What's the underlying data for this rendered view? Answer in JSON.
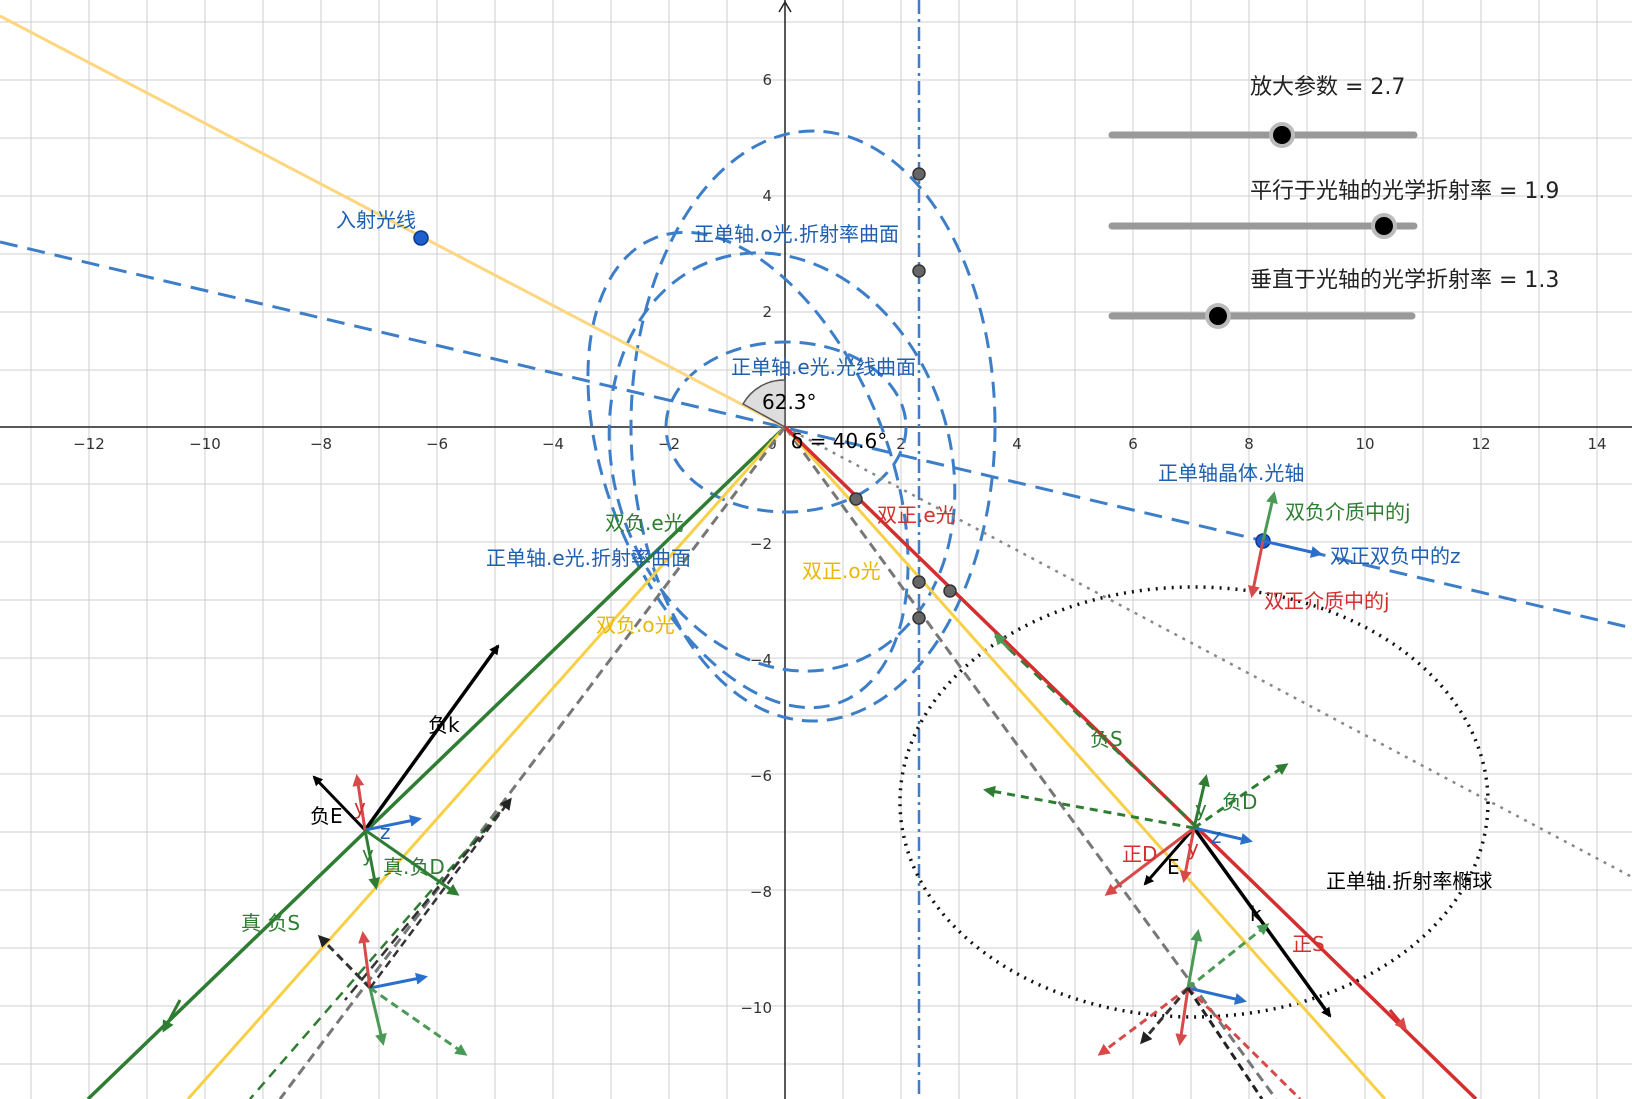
{
  "axes": {
    "x_ticks": [
      "−12",
      "−10",
      "−8",
      "−6",
      "−4",
      "−2",
      "0",
      "2",
      "4",
      "6",
      "8",
      "10",
      "12",
      "14"
    ],
    "y_ticks": [
      "6",
      "4",
      "2",
      "−2",
      "−4",
      "−6",
      "−8",
      "−10"
    ]
  },
  "sliders": [
    {
      "label": "放大参数 = 2.7",
      "value": 2.7
    },
    {
      "label": "平行于光轴的光学折射率 = 1.9",
      "value": 1.9
    },
    {
      "label": "垂直于光轴的光学折射率 = 1.3",
      "value": 1.3
    }
  ],
  "angles": {
    "incidence": "62.3°",
    "delta": "δ = 40.6°"
  },
  "labels": {
    "incident_ray": "入射光线",
    "o_index_curve": "正单轴.o光.折射率曲面",
    "e_ray_curve": "正单轴.e光.光线曲面",
    "e_index_curve": "正单轴.e光.折射率曲面",
    "optic_axis": "正单轴晶体.光轴",
    "neg_e": "双负.e光",
    "pos_e": "双正.e光",
    "pos_o": "双正.o光",
    "neg_o": "双负.o光",
    "j_neg": "双负介质中的j",
    "z_both": "双正双负中的z",
    "j_pos": "双正介质中的j",
    "neg_S": "负S",
    "neg_D": "负D",
    "pos_D": "正D",
    "E": "E",
    "y": "y",
    "z": "z",
    "k": "k",
    "pos_S": "正S",
    "neg_k": "负k",
    "neg_E": "负E",
    "true_neg_D": "真.负D",
    "true_neg_S": "真.负S",
    "ellipsoid": "正单轴.折射率椭球"
  },
  "colors": {
    "grid": "#c8c8c8",
    "blue": "#3d7ec9",
    "orange": "#fcd77f",
    "yellow": "#f7d048",
    "green": "#2e7d32",
    "red": "#d32f2f",
    "gray": "#777777",
    "black": "#000000"
  }
}
